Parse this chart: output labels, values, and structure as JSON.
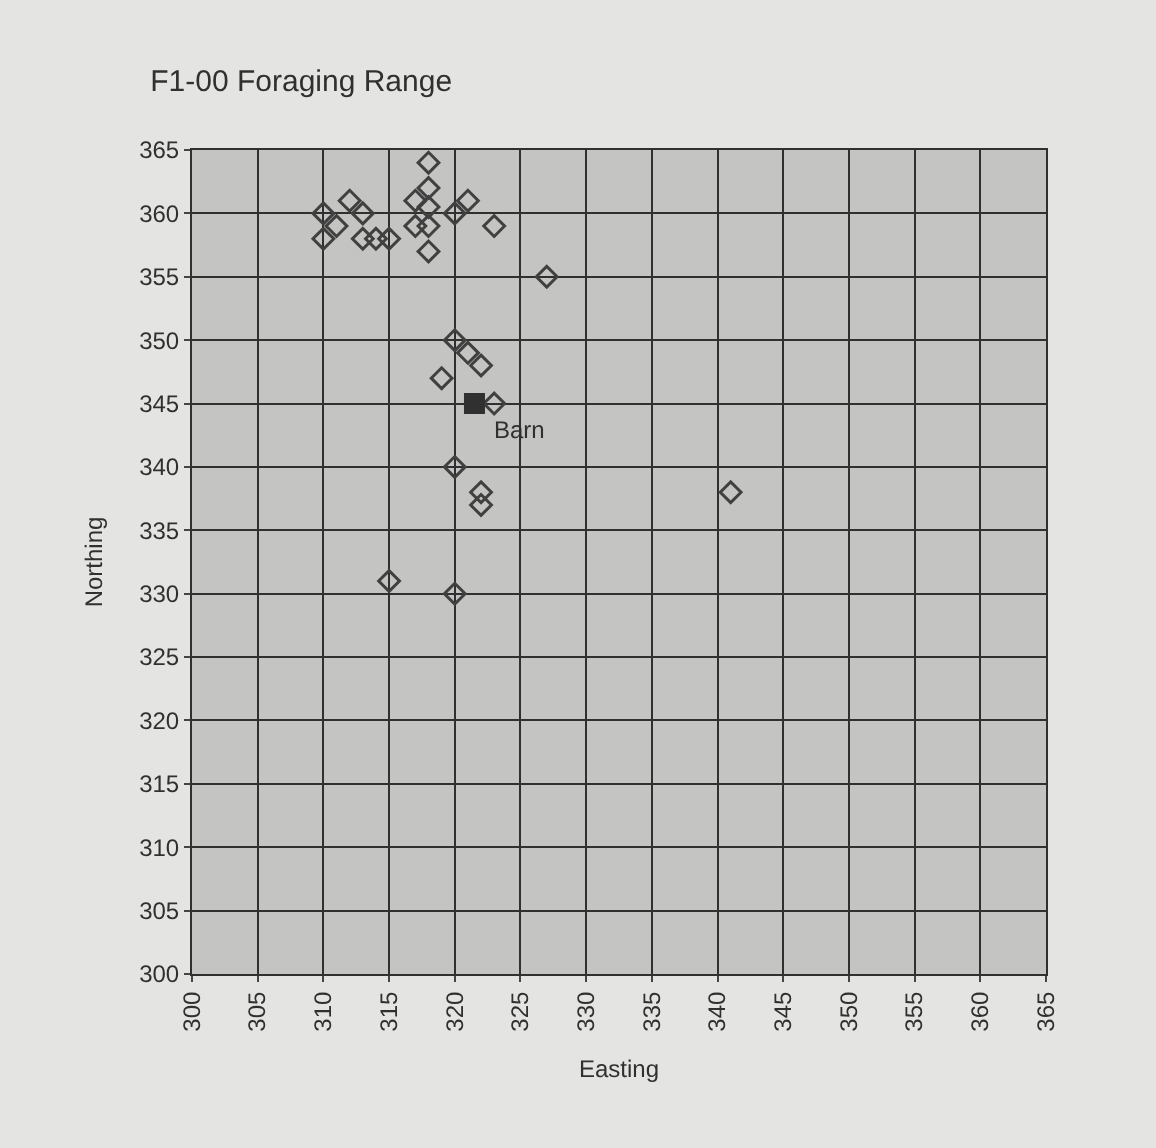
{
  "chart_data": {
    "type": "scatter",
    "title": "F1-00 Foraging Range",
    "xlabel": "Easting",
    "ylabel": "Northing",
    "series": [
      {
        "color": "#404040",
        "marker": "diamond",
        "x": [
          318,
          318,
          317,
          318,
          318,
          318,
          310,
          310,
          311,
          312,
          313,
          313,
          314,
          315,
          317,
          320,
          321,
          323,
          327,
          320,
          321,
          322,
          319,
          323,
          320,
          322,
          322,
          341,
          315,
          320
        ],
        "values": [
          364,
          362,
          361,
          360.5,
          359,
          357,
          360,
          358,
          359,
          361,
          360,
          358,
          358,
          358,
          359,
          360,
          361,
          359,
          355,
          350,
          349,
          348,
          347,
          345,
          340,
          338,
          337,
          338,
          331,
          330
        ]
      },
      {
        "color": "#303030",
        "marker": "square",
        "x": [
          321.5
        ],
        "values": [
          345
        ]
      }
    ],
    "annotations": [
      {
        "text": "Barn",
        "x": 321.5,
        "y": 345
      }
    ],
    "xlim": [
      300,
      365
    ],
    "ylim": [
      300,
      365
    ],
    "xticks": [
      300,
      305,
      310,
      315,
      320,
      325,
      330,
      335,
      340,
      345,
      350,
      355,
      360,
      365
    ],
    "yticks": [
      300,
      305,
      310,
      315,
      320,
      325,
      330,
      335,
      340,
      345,
      350,
      355,
      360,
      365
    ],
    "grid": true
  }
}
